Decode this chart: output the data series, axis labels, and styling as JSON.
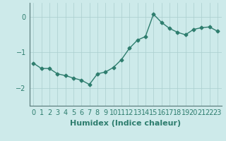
{
  "x": [
    0,
    1,
    2,
    3,
    4,
    5,
    6,
    7,
    8,
    9,
    10,
    11,
    12,
    13,
    14,
    15,
    16,
    17,
    18,
    19,
    20,
    21,
    22,
    23
  ],
  "y": [
    -1.3,
    -1.45,
    -1.45,
    -1.6,
    -1.65,
    -1.72,
    -1.78,
    -1.9,
    -1.6,
    -1.55,
    -1.42,
    -1.2,
    -0.88,
    -0.65,
    -0.55,
    0.08,
    -0.15,
    -0.32,
    -0.43,
    -0.5,
    -0.35,
    -0.3,
    -0.28,
    -0.4
  ],
  "line_color": "#2e7d6e",
  "marker": "D",
  "marker_size": 2.5,
  "bg_color": "#cdeaea",
  "grid_color": "#aacece",
  "xlabel": "Humidex (Indice chaleur)",
  "xlim": [
    -0.5,
    23.5
  ],
  "ylim": [
    -2.5,
    0.4
  ],
  "yticks": [
    -2,
    -1,
    0
  ],
  "tick_fontsize": 7,
  "xlabel_fontsize": 8,
  "linewidth": 1.0
}
